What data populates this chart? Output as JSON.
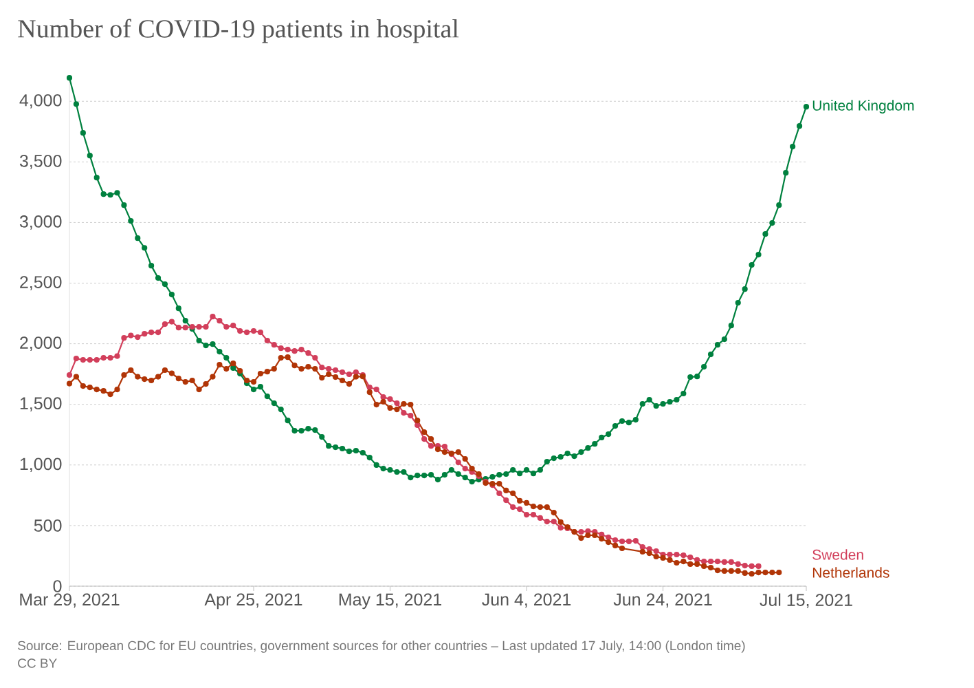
{
  "chart_data": {
    "type": "line",
    "title": "Number of COVID-19 patients in hospital",
    "x": [
      "2021-03-29",
      "2021-03-30",
      "2021-03-31",
      "2021-04-01",
      "2021-04-02",
      "2021-04-03",
      "2021-04-04",
      "2021-04-05",
      "2021-04-06",
      "2021-04-07",
      "2021-04-08",
      "2021-04-09",
      "2021-04-10",
      "2021-04-11",
      "2021-04-12",
      "2021-04-13",
      "2021-04-14",
      "2021-04-15",
      "2021-04-16",
      "2021-04-17",
      "2021-04-18",
      "2021-04-19",
      "2021-04-20",
      "2021-04-21",
      "2021-04-22",
      "2021-04-23",
      "2021-04-24",
      "2021-04-25",
      "2021-04-26",
      "2021-04-27",
      "2021-04-28",
      "2021-04-29",
      "2021-04-30",
      "2021-05-01",
      "2021-05-02",
      "2021-05-03",
      "2021-05-04",
      "2021-05-05",
      "2021-05-06",
      "2021-05-07",
      "2021-05-08",
      "2021-05-09",
      "2021-05-10",
      "2021-05-11",
      "2021-05-12",
      "2021-05-13",
      "2021-05-14",
      "2021-05-15",
      "2021-05-16",
      "2021-05-17",
      "2021-05-18",
      "2021-05-19",
      "2021-05-20",
      "2021-05-21",
      "2021-05-22",
      "2021-05-23",
      "2021-05-24",
      "2021-05-25",
      "2021-05-26",
      "2021-05-27",
      "2021-05-28",
      "2021-05-29",
      "2021-05-30",
      "2021-05-31",
      "2021-06-01",
      "2021-06-02",
      "2021-06-03",
      "2021-06-04",
      "2021-06-05",
      "2021-06-06",
      "2021-06-07",
      "2021-06-08",
      "2021-06-09",
      "2021-06-10",
      "2021-06-11",
      "2021-06-12",
      "2021-06-13",
      "2021-06-14",
      "2021-06-15",
      "2021-06-16",
      "2021-06-17",
      "2021-06-18",
      "2021-06-19",
      "2021-06-20",
      "2021-06-21",
      "2021-06-22",
      "2021-06-23",
      "2021-06-24",
      "2021-06-25",
      "2021-06-26",
      "2021-06-27",
      "2021-06-28",
      "2021-06-29",
      "2021-06-30",
      "2021-07-01",
      "2021-07-02",
      "2021-07-03",
      "2021-07-04",
      "2021-07-05",
      "2021-07-06",
      "2021-07-07",
      "2021-07-08",
      "2021-07-09",
      "2021-07-10",
      "2021-07-11",
      "2021-07-12",
      "2021-07-13",
      "2021-07-14",
      "2021-07-15"
    ],
    "series": [
      {
        "name": "United Kingdom",
        "color": "#00813f",
        "values": [
          4193,
          3977,
          3739,
          3552,
          3370,
          3234,
          3228,
          3245,
          3143,
          3013,
          2871,
          2791,
          2644,
          2542,
          2491,
          2406,
          2292,
          2190,
          2122,
          2026,
          1986,
          1997,
          1935,
          1884,
          1799,
          1753,
          1674,
          1623,
          1645,
          1566,
          1509,
          1458,
          1367,
          1282,
          1282,
          1299,
          1288,
          1231,
          1157,
          1146,
          1135,
          1112,
          1118,
          1101,
          1061,
          999,
          970,
          959,
          942,
          942,
          896,
          913,
          913,
          919,
          879,
          919,
          959,
          925,
          896,
          862,
          879,
          885,
          902,
          919,
          925,
          959,
          930,
          959,
          930,
          959,
          1027,
          1055,
          1067,
          1095,
          1072,
          1106,
          1140,
          1174,
          1226,
          1254,
          1322,
          1362,
          1350,
          1373,
          1504,
          1538,
          1487,
          1504,
          1521,
          1538,
          1589,
          1725,
          1730,
          1810,
          1912,
          1991,
          2037,
          2150,
          2338,
          2451,
          2650,
          2735,
          2905,
          2996,
          3143,
          3410,
          3626,
          3796,
          3955
        ]
      },
      {
        "name": "Sweden",
        "color": "#d23f5b",
        "values": [
          1742,
          1878,
          1867,
          1867,
          1867,
          1884,
          1884,
          1898,
          2048,
          2068,
          2054,
          2082,
          2094,
          2094,
          2162,
          2182,
          2133,
          2133,
          2139,
          2139,
          2139,
          2224,
          2190,
          2139,
          2150,
          2105,
          2094,
          2105,
          2094,
          2026,
          1991,
          1963,
          1952,
          1940,
          1952,
          1923,
          1884,
          1804,
          1793,
          1782,
          1765,
          1748,
          1765,
          1742,
          1640,
          1623,
          1560,
          1543,
          1509,
          1430,
          1407,
          1328,
          1214,
          1157,
          1157,
          1152,
          1089,
          1021,
          970,
          942,
          908,
          862,
          834,
          766,
          709,
          652,
          635,
          590,
          590,
          562,
          533,
          533,
          482,
          477,
          448,
          448,
          454,
          448,
          426,
          403,
          380,
          369,
          369,
          374,
          323,
          306,
          289,
          261,
          261,
          261,
          255,
          238,
          216,
          204,
          204,
          204,
          199,
          199,
          182,
          170,
          165,
          165,
          null,
          null,
          null,
          null,
          null,
          null,
          null
        ]
      },
      {
        "name": "Netherlands",
        "color": "#b13507",
        "x": [
          "2021-03-29",
          "2021-03-30",
          "2021-03-31",
          "2021-04-01",
          "2021-04-02",
          "2021-04-03",
          "2021-04-04",
          "2021-04-05",
          "2021-04-06",
          "2021-04-07",
          "2021-04-08",
          "2021-04-09",
          "2021-04-10",
          "2021-04-11",
          "2021-04-12",
          "2021-04-13",
          "2021-04-14",
          "2021-04-15",
          "2021-04-16",
          "2021-04-17",
          "2021-04-18",
          "2021-04-19",
          "2021-04-20",
          "2021-04-21",
          "2021-04-22",
          "2021-04-23",
          "2021-04-24",
          "2021-04-25",
          "2021-04-26",
          "2021-04-27",
          "2021-04-28",
          "2021-04-29",
          "2021-04-30",
          "2021-05-01",
          "2021-05-02",
          "2021-05-03",
          "2021-05-04",
          "2021-05-05",
          "2021-05-06",
          "2021-05-07",
          "2021-05-08",
          "2021-05-09",
          "2021-05-10",
          "2021-05-11",
          "2021-05-12",
          "2021-05-13",
          "2021-05-14",
          "2021-05-15",
          "2021-05-16",
          "2021-05-17",
          "2021-05-18",
          "2021-05-19",
          "2021-05-20",
          "2021-05-21",
          "2021-05-22",
          "2021-05-23",
          "2021-05-24",
          "2021-05-25",
          "2021-05-26",
          "2021-05-27",
          "2021-05-28",
          "2021-05-29",
          "2021-05-30",
          "2021-05-31",
          "2021-06-01",
          "2021-06-02",
          "2021-06-03",
          "2021-06-04",
          "2021-06-05",
          "2021-06-06",
          "2021-06-07",
          "2021-06-08",
          "2021-06-09",
          "2021-06-10",
          "2021-06-11",
          "2021-06-12",
          "2021-06-13",
          "2021-06-14",
          "2021-06-15",
          "2021-06-16",
          "2021-06-17",
          "2021-06-18",
          "2021-06-21",
          "2021-06-22",
          "2021-06-23",
          "2021-06-24",
          "2021-06-25",
          "2021-06-26",
          "2021-06-27",
          "2021-06-28",
          "2021-06-29",
          "2021-06-30",
          "2021-07-01",
          "2021-07-02",
          "2021-07-03",
          "2021-07-04",
          "2021-07-05",
          "2021-07-06",
          "2021-07-07",
          "2021-07-08",
          "2021-07-09",
          "2021-07-10",
          "2021-07-11"
        ],
        "values": [
          1671,
          1728,
          1651,
          1640,
          1623,
          1611,
          1583,
          1623,
          1742,
          1782,
          1728,
          1708,
          1697,
          1728,
          1782,
          1756,
          1713,
          1685,
          1697,
          1623,
          1668,
          1728,
          1827,
          1793,
          1838,
          1776,
          1697,
          1685,
          1753,
          1770,
          1793,
          1884,
          1889,
          1821,
          1793,
          1810,
          1793,
          1719,
          1748,
          1725,
          1697,
          1668,
          1728,
          1730,
          1600,
          1498,
          1521,
          1470,
          1458,
          1504,
          1498,
          1367,
          1271,
          1214,
          1129,
          1106,
          1095,
          1106,
          1050,
          970,
          925,
          851,
          845,
          845,
          789,
          766,
          704,
          687,
          658,
          652,
          652,
          607,
          528,
          488,
          448,
          397,
          420,
          420,
          391,
          363,
          335,
          312,
          284,
          272,
          244,
          233,
          216,
          193,
          204,
          182,
          182,
          165,
          153,
          130,
          125,
          125,
          125,
          108,
          102,
          113,
          113,
          113,
          113
        ]
      }
    ],
    "xlim": [
      "2021-03-29",
      "2021-07-15"
    ],
    "xticks": [
      {
        "value": "2021-03-29",
        "label": "Mar 29, 2021"
      },
      {
        "value": "2021-04-25",
        "label": "Apr 25, 2021"
      },
      {
        "value": "2021-05-15",
        "label": "May 15, 2021"
      },
      {
        "value": "2021-06-04",
        "label": "Jun 4, 2021"
      },
      {
        "value": "2021-06-24",
        "label": "Jun 24, 2021"
      },
      {
        "value": "2021-07-15",
        "label": "Jul 15, 2021"
      }
    ],
    "yticks": [
      0,
      500,
      {
        "value": 1000,
        "label": "1,000"
      },
      {
        "value": 1500,
        "label": "1,500"
      },
      {
        "value": 2000,
        "label": "2,000"
      },
      {
        "value": 2500,
        "label": "2,500"
      },
      {
        "value": 3000,
        "label": "3,000"
      },
      {
        "value": 3500,
        "label": "3,500"
      },
      {
        "value": 4000,
        "label": "4,000"
      }
    ],
    "ylim": [
      0,
      4200
    ],
    "grid": "y",
    "legend": false,
    "marker": "circle",
    "line_style": "solid",
    "annotations": [
      "Source: European CDC for EU countries, government sources for other countries – Last updated 17 July, 14:00 (London time)",
      "CC BY"
    ]
  }
}
